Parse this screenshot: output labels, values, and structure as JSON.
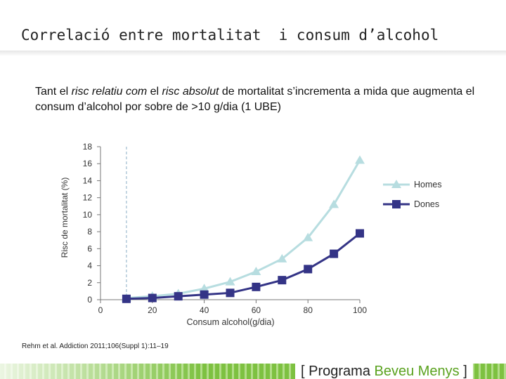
{
  "title": "Correlació entre mortalitat  i consum d’alcohol",
  "intro": {
    "p1": "Tant el ",
    "em1": "risc relatiu com",
    "p2": " el ",
    "em2": "risc absolut",
    "p3": " de mortalitat s’incrementa a mida que augmenta el consum d’alcohol por sobre de >10 g/dia (1 UBE)"
  },
  "reference": "Rehm et al. Addiction 2011;106(Suppl 1):11–19",
  "brand": {
    "open": "[",
    "part1": "Programa",
    "part2": "Beveu Menys",
    "close": "]"
  },
  "colors": {
    "homes": "#b7dde0",
    "dones": "#343486",
    "reference_line": "#b0c8d8",
    "footer_green": "#6fba2c"
  },
  "chart_data": {
    "type": "line",
    "xlabel": "Consum alcohol(g/dia)",
    "ylabel": "Risc de mortalitat (%)",
    "xlim": [
      0,
      100
    ],
    "ylim": [
      0,
      18
    ],
    "xticks": [
      0,
      20,
      40,
      60,
      80,
      100
    ],
    "yticks": [
      0,
      2,
      4,
      6,
      8,
      10,
      12,
      14,
      16,
      18
    ],
    "reference_x": 10,
    "legend_position": "right",
    "series": [
      {
        "name": "Homes",
        "marker": "triangle",
        "color": "#b7dde0",
        "x": [
          10,
          20,
          30,
          40,
          50,
          60,
          70,
          80,
          90,
          100
        ],
        "y": [
          0.2,
          0.4,
          0.7,
          1.3,
          2.1,
          3.3,
          4.8,
          7.3,
          11.2,
          16.4
        ]
      },
      {
        "name": "Dones",
        "marker": "square",
        "color": "#343486",
        "x": [
          10,
          20,
          30,
          40,
          50,
          60,
          70,
          80,
          90,
          100
        ],
        "y": [
          0.1,
          0.2,
          0.4,
          0.6,
          0.8,
          1.5,
          2.3,
          3.6,
          5.4,
          7.8
        ]
      }
    ]
  }
}
